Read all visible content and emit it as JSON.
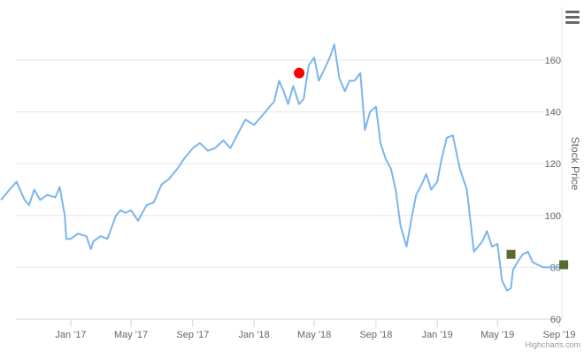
{
  "chart_data": {
    "type": "line",
    "series": [
      {
        "name": "",
        "color": "#7cb5ec",
        "x": [
          "2016-08-15",
          "2016-09-01",
          "2016-09-15",
          "2016-10-01",
          "2016-10-10",
          "2016-10-20",
          "2016-11-01",
          "2016-11-15",
          "2016-12-01",
          "2016-12-10",
          "2016-12-20",
          "2016-12-23",
          "2017-01-01",
          "2017-01-15",
          "2017-02-01",
          "2017-02-10",
          "2017-02-15",
          "2017-03-01",
          "2017-03-15",
          "2017-04-01",
          "2017-04-10",
          "2017-04-20",
          "2017-05-01",
          "2017-05-15",
          "2017-06-01",
          "2017-06-15",
          "2017-07-01",
          "2017-07-15",
          "2017-08-01",
          "2017-08-15",
          "2017-09-01",
          "2017-09-15",
          "2017-10-01",
          "2017-10-15",
          "2017-11-01",
          "2017-11-15",
          "2017-12-01",
          "2017-12-15",
          "2018-01-01",
          "2018-01-15",
          "2018-02-01",
          "2018-02-10",
          "2018-02-20",
          "2018-03-01",
          "2018-03-10",
          "2018-03-20",
          "2018-04-01",
          "2018-04-10",
          "2018-04-20",
          "2018-05-01",
          "2018-05-10",
          "2018-05-20",
          "2018-06-01",
          "2018-06-10",
          "2018-06-20",
          "2018-07-01",
          "2018-07-10",
          "2018-07-20",
          "2018-08-01",
          "2018-08-10",
          "2018-08-20",
          "2018-09-01",
          "2018-09-10",
          "2018-09-20",
          "2018-10-01",
          "2018-10-10",
          "2018-10-20",
          "2018-11-01",
          "2018-11-10",
          "2018-11-20",
          "2018-12-01",
          "2018-12-10",
          "2018-12-20",
          "2019-01-01",
          "2019-01-10",
          "2019-01-20",
          "2019-02-01",
          "2019-02-15",
          "2019-03-01",
          "2019-03-15",
          "2019-04-01",
          "2019-04-10",
          "2019-04-20",
          "2019-05-01",
          "2019-05-10",
          "2019-05-20",
          "2019-05-28",
          "2019-06-01",
          "2019-06-10",
          "2019-06-20",
          "2019-07-01",
          "2019-07-10",
          "2019-07-20",
          "2019-08-01",
          "2019-08-10",
          "2019-08-20",
          "2019-08-31",
          "2019-09-05",
          "2019-09-10"
        ],
        "y": [
          106,
          110,
          113,
          106,
          104,
          110,
          106,
          108,
          107,
          111,
          100,
          91,
          91,
          93,
          92,
          87,
          90,
          92,
          91,
          100,
          102,
          101,
          102,
          98,
          104,
          105,
          112,
          114,
          118,
          122,
          126,
          128,
          125,
          126,
          129,
          126,
          132,
          137,
          135,
          138,
          142,
          144,
          152,
          148,
          143,
          150,
          143,
          145,
          158,
          161,
          152,
          156,
          161,
          166,
          153,
          148,
          152,
          152,
          155,
          133,
          140,
          142,
          128,
          122,
          118,
          110,
          96,
          88,
          98,
          108,
          112,
          116,
          110,
          113,
          122,
          130,
          131,
          118,
          110,
          86,
          90,
          94,
          88,
          89,
          75,
          71,
          72,
          79,
          82,
          85,
          86,
          82,
          81,
          80,
          80,
          80,
          80,
          80,
          80
        ],
        "ylabel_unused": ""
      }
    ],
    "x_ticks": [
      "Jan '17",
      "May '17",
      "Sep '17",
      "Jan '18",
      "May '18",
      "Sep '18",
      "Jan '19",
      "May '19",
      "Sep '19"
    ],
    "y_ticks": [
      "60",
      "80",
      "100",
      "120",
      "140",
      "160"
    ],
    "ylim": [
      60,
      170
    ],
    "ylabel": "Stock Price",
    "xlabel": "",
    "title": "",
    "grid": true,
    "yaxis_position": "right",
    "markers": [
      {
        "type": "circle",
        "color": "#ff0000",
        "x": "2018-04-01",
        "y": 155
      },
      {
        "type": "square",
        "color": "#556b2f",
        "x": "2019-05-28",
        "y": 85
      },
      {
        "type": "square",
        "color": "#556b2f",
        "x": "2019-09-10",
        "y": 81
      }
    ]
  },
  "ui": {
    "credits": "Highcharts.com",
    "menu_icon": "hamburger-menu-icon"
  }
}
